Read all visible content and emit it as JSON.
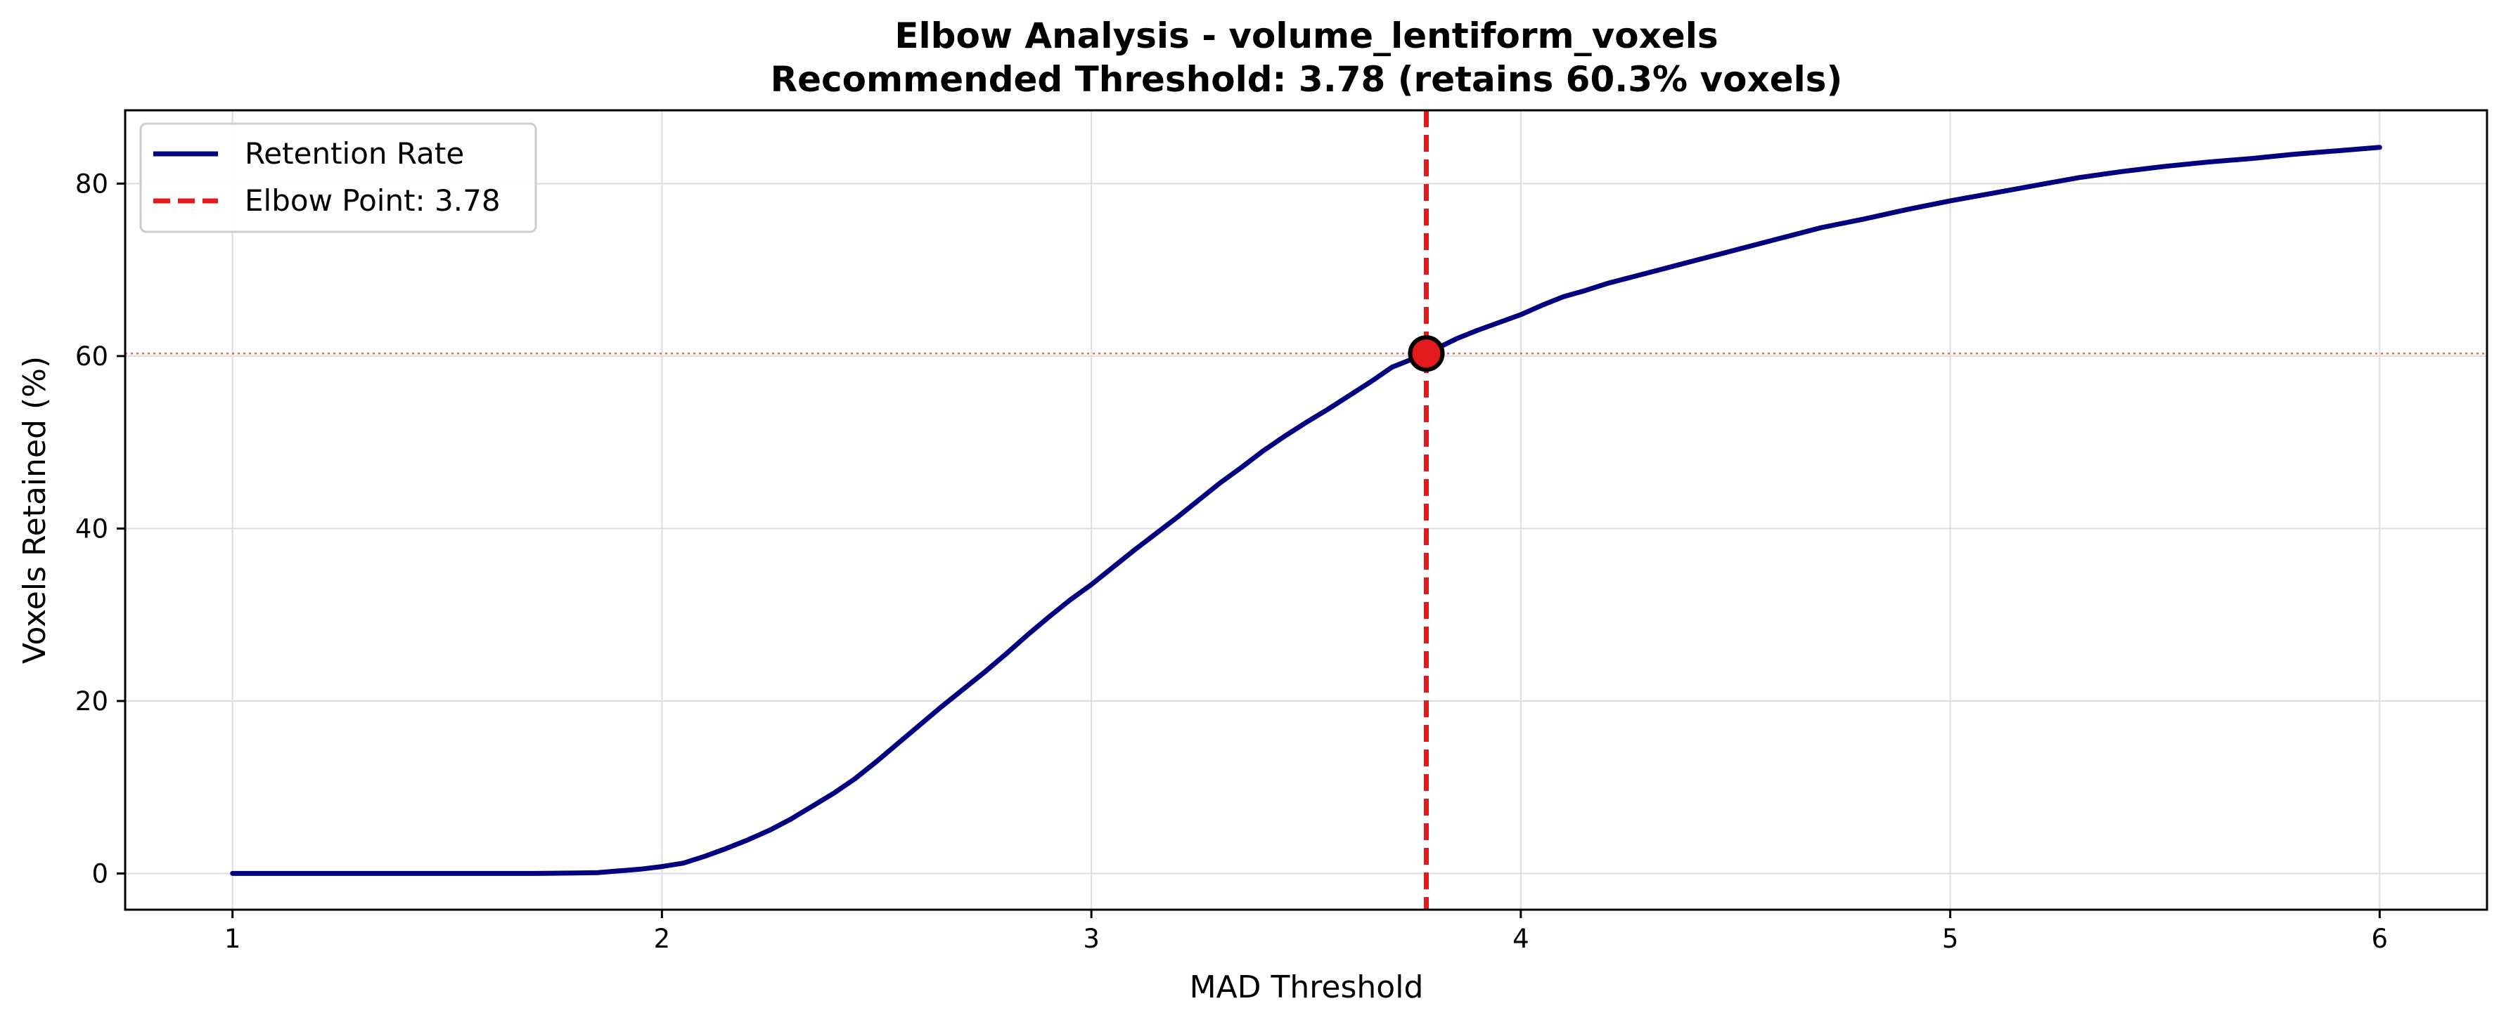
{
  "chart_data": {
    "type": "line",
    "title": "Elbow Analysis - volume_lentiform_voxels",
    "subtitle": "Recommended Threshold: 3.78 (retains 60.3% voxels)",
    "xlabel": "MAD Threshold",
    "ylabel": "Voxels Retained (%)",
    "xlim": [
      0.75,
      6.25
    ],
    "ylim": [
      -4.2,
      88.5
    ],
    "xticks": [
      1,
      2,
      3,
      4,
      5,
      6
    ],
    "xtick_labels": [
      "1",
      "2",
      "3",
      "4",
      "5",
      "6"
    ],
    "yticks": [
      0,
      20,
      40,
      60,
      80
    ],
    "ytick_labels": [
      "0",
      "20",
      "40",
      "60",
      "80"
    ],
    "grid": true,
    "legend_position": "top-left",
    "series": [
      {
        "name": "Retention Rate",
        "color": "#000080",
        "style": "solid",
        "x": [
          1.0,
          1.2,
          1.4,
          1.6,
          1.7,
          1.8,
          1.85,
          1.9,
          1.95,
          2.0,
          2.05,
          2.1,
          2.15,
          2.2,
          2.25,
          2.3,
          2.35,
          2.4,
          2.45,
          2.5,
          2.55,
          2.6,
          2.65,
          2.7,
          2.75,
          2.8,
          2.85,
          2.9,
          2.95,
          3.0,
          3.05,
          3.1,
          3.15,
          3.2,
          3.25,
          3.3,
          3.35,
          3.4,
          3.45,
          3.5,
          3.55,
          3.6,
          3.65,
          3.7,
          3.78,
          3.85,
          3.9,
          4.0,
          4.05,
          4.1,
          4.15,
          4.2,
          4.3,
          4.4,
          4.5,
          4.6,
          4.7,
          4.8,
          4.9,
          5.0,
          5.1,
          5.2,
          5.3,
          5.4,
          5.5,
          5.6,
          5.7,
          5.8,
          5.9,
          6.0
        ],
        "y": [
          0.0,
          0.0,
          0.0,
          0.0,
          0.0,
          0.05,
          0.1,
          0.3,
          0.5,
          0.8,
          1.2,
          2.0,
          2.9,
          3.9,
          5.0,
          6.3,
          7.8,
          9.3,
          11.0,
          13.0,
          15.1,
          17.2,
          19.3,
          21.3,
          23.3,
          25.4,
          27.6,
          29.7,
          31.7,
          33.5,
          35.5,
          37.5,
          39.4,
          41.3,
          43.3,
          45.3,
          47.1,
          49.0,
          50.7,
          52.3,
          53.8,
          55.4,
          57.0,
          58.7,
          60.3,
          62.0,
          63.0,
          64.8,
          65.9,
          66.9,
          67.6,
          68.4,
          69.7,
          71.0,
          72.3,
          73.6,
          74.9,
          75.9,
          77.0,
          78.0,
          78.9,
          79.8,
          80.7,
          81.4,
          82.0,
          82.5,
          82.9,
          83.4,
          83.8,
          84.2
        ]
      },
      {
        "name": "Elbow Point: 3.78",
        "color": "#e31a1c",
        "style": "dashed",
        "vline_x": 3.78
      }
    ],
    "hline": {
      "y": 60.3,
      "color": "#e31a1c",
      "style": "dotted"
    },
    "elbow_marker": {
      "x": 3.78,
      "y": 60.3,
      "color": "#e31a1c"
    }
  }
}
